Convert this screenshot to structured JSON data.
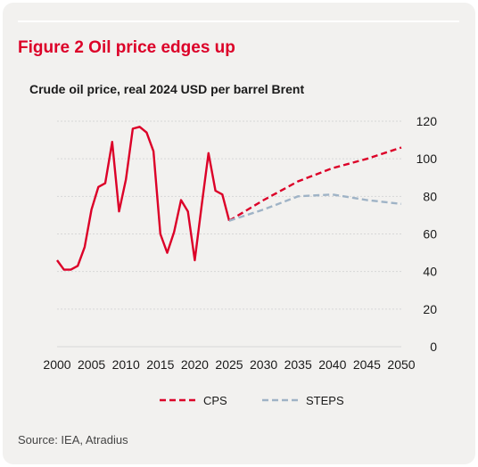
{
  "figure": {
    "title": "Figure 2 Oil price edges up",
    "source": "Source: IEA, Atradius"
  },
  "colors": {
    "historical": "#dc0028",
    "cps": "#dc0028",
    "steps": "#9fb3c6",
    "grid": "#d7d7d7",
    "background": "#f2f1ef"
  },
  "chart_data": {
    "type": "line",
    "title": "Crude oil price, real 2024 USD per barrel Brent",
    "xlabel": "",
    "ylabel": "",
    "xlim": [
      2000,
      2050
    ],
    "ylim": [
      0,
      120
    ],
    "xticks": [
      2000,
      2005,
      2010,
      2015,
      2020,
      2025,
      2030,
      2035,
      2040,
      2045,
      2050
    ],
    "yticks": [
      0,
      20,
      40,
      60,
      80,
      100,
      120
    ],
    "y_axis_side": "right",
    "grid": true,
    "legend": "bottom-center",
    "series": [
      {
        "key": "historical",
        "in_legend": false,
        "style": "solid",
        "x": [
          2000,
          2001,
          2002,
          2003,
          2004,
          2005,
          2006,
          2007,
          2008,
          2009,
          2010,
          2011,
          2012,
          2013,
          2014,
          2015,
          2016,
          2017,
          2018,
          2019,
          2020,
          2021,
          2022,
          2023,
          2024,
          2025
        ],
        "y": [
          46,
          41,
          41,
          43,
          53,
          73,
          85,
          87,
          109,
          72,
          89,
          116,
          117,
          114,
          104,
          60,
          50,
          61,
          78,
          72,
          46,
          75,
          103,
          83,
          81,
          67
        ]
      },
      {
        "key": "cps",
        "name": "CPS",
        "in_legend": true,
        "style": "dashed",
        "x": [
          2025,
          2030,
          2035,
          2040,
          2045,
          2050
        ],
        "y": [
          67,
          78,
          88,
          95,
          100,
          106
        ]
      },
      {
        "key": "steps",
        "name": "STEPS",
        "in_legend": true,
        "style": "dashed",
        "x": [
          2025,
          2030,
          2035,
          2040,
          2045,
          2050
        ],
        "y": [
          67,
          73,
          80,
          81,
          78,
          76
        ]
      }
    ]
  }
}
